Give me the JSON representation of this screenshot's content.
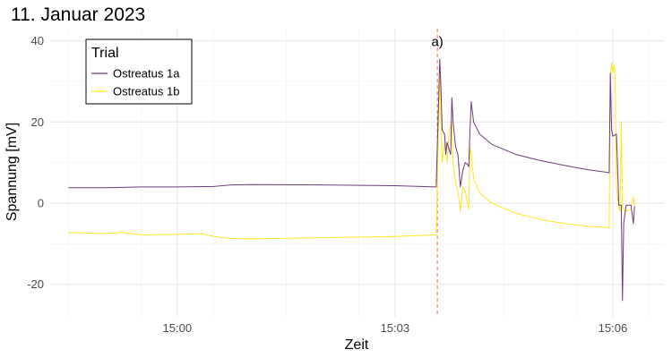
{
  "chart_data": {
    "type": "line",
    "title": "11. Januar 2023",
    "xlabel": "Zeit",
    "ylabel": "Spannung [mV]",
    "x_unit": "time (hh:mm:ss)",
    "xlim": [
      "14:58:15",
      "15:06:43"
    ],
    "ylim": [
      -28,
      43
    ],
    "x_ticks": [
      {
        "label": "15:00",
        "value": "15:00:00"
      },
      {
        "label": "15:03",
        "value": "15:03:00"
      },
      {
        "label": "15:06",
        "value": "15:06:00"
      }
    ],
    "y_ticks": [
      -20,
      0,
      20,
      40
    ],
    "minor_x_ticks": [
      "14:58:30",
      "14:59:30",
      "15:00:30",
      "15:01:30",
      "15:02:30",
      "15:03:30",
      "15:04:30",
      "15:05:30",
      "15:06:30"
    ],
    "minor_y_ticks": [
      -10,
      10,
      30
    ],
    "grid": true,
    "legend": {
      "title": "Trial",
      "position": "top-left"
    },
    "series": [
      {
        "name": "Ostreatus 1a",
        "color": "#6b3d7a",
        "points": [
          [
            "14:58:30",
            3.8
          ],
          [
            "14:59:00",
            3.8
          ],
          [
            "14:59:30",
            4.0
          ],
          [
            "15:00:00",
            4.0
          ],
          [
            "15:00:30",
            4.1
          ],
          [
            "15:00:45",
            4.5
          ],
          [
            "15:01:00",
            4.6
          ],
          [
            "15:02:00",
            4.5
          ],
          [
            "15:03:00",
            4.3
          ],
          [
            "15:03:34",
            4.0
          ],
          [
            "15:03:37",
            35.5
          ],
          [
            "15:03:38",
            28
          ],
          [
            "15:03:39",
            18
          ],
          [
            "15:03:41",
            17
          ],
          [
            "15:03:42",
            12
          ],
          [
            "15:03:43",
            15
          ],
          [
            "15:03:45",
            13
          ],
          [
            "15:03:46",
            12
          ],
          [
            "15:03:47",
            26
          ],
          [
            "15:03:48",
            20
          ],
          [
            "15:03:50",
            14
          ],
          [
            "15:03:52",
            12
          ],
          [
            "15:03:54",
            4
          ],
          [
            "15:03:56",
            8
          ],
          [
            "15:03:58",
            10
          ],
          [
            "15:04:00",
            9.5
          ],
          [
            "15:04:01",
            9
          ],
          [
            "15:04:02",
            18.5
          ],
          [
            "15:04:03",
            25
          ],
          [
            "15:04:05",
            20
          ],
          [
            "15:04:10",
            17
          ],
          [
            "15:04:20",
            14.5
          ],
          [
            "15:04:40",
            12
          ],
          [
            "15:05:00",
            10.5
          ],
          [
            "15:05:20",
            9.3
          ],
          [
            "15:05:40",
            8.2
          ],
          [
            "15:05:55",
            7.6
          ],
          [
            "15:05:57",
            7.5
          ],
          [
            "15:05:58",
            32
          ],
          [
            "15:05:59",
            18
          ],
          [
            "15:06:00",
            16.5
          ],
          [
            "15:06:03",
            17
          ],
          [
            "15:06:05",
            -0.5
          ],
          [
            "15:06:07",
            -0.5
          ],
          [
            "15:06:08",
            -24
          ],
          [
            "15:06:09",
            -5
          ],
          [
            "15:06:11",
            -0.5
          ],
          [
            "15:06:15",
            -0.5
          ],
          [
            "15:06:17",
            -5
          ],
          [
            "15:06:18",
            -0.8
          ]
        ]
      },
      {
        "name": "Ostreatus 1b",
        "color": "#fde725",
        "points": [
          [
            "14:58:30",
            -7.2
          ],
          [
            "14:59:00",
            -7.5
          ],
          [
            "14:59:15",
            -7.2
          ],
          [
            "14:59:30",
            -7.8
          ],
          [
            "15:00:00",
            -7.7
          ],
          [
            "15:00:20",
            -7.5
          ],
          [
            "15:00:30",
            -8.2
          ],
          [
            "15:00:45",
            -8.7
          ],
          [
            "15:01:00",
            -8.8
          ],
          [
            "15:02:00",
            -8.5
          ],
          [
            "15:03:00",
            -8.2
          ],
          [
            "15:03:34",
            -7.8
          ],
          [
            "15:03:37",
            32
          ],
          [
            "15:03:38",
            20
          ],
          [
            "15:03:39",
            10
          ],
          [
            "15:03:41",
            15
          ],
          [
            "15:03:43",
            10
          ],
          [
            "15:03:45",
            18
          ],
          [
            "15:03:47",
            20
          ],
          [
            "15:03:48",
            10
          ],
          [
            "15:03:50",
            5
          ],
          [
            "15:03:52",
            3
          ],
          [
            "15:03:54",
            -2
          ],
          [
            "15:03:56",
            4
          ],
          [
            "15:03:58",
            3
          ],
          [
            "15:04:00",
            0
          ],
          [
            "15:04:01",
            -1.5
          ],
          [
            "15:04:02",
            14
          ],
          [
            "15:04:03",
            12
          ],
          [
            "15:04:05",
            6
          ],
          [
            "15:04:10",
            2.5
          ],
          [
            "15:04:20",
            0
          ],
          [
            "15:04:40",
            -2.5
          ],
          [
            "15:05:00",
            -4
          ],
          [
            "15:05:20",
            -5
          ],
          [
            "15:05:40",
            -5.7
          ],
          [
            "15:05:56",
            -6
          ],
          [
            "15:05:57",
            -6.2
          ],
          [
            "15:05:58",
            31
          ],
          [
            "15:05:59",
            34.5
          ],
          [
            "15:06:00",
            32
          ],
          [
            "15:06:01",
            34
          ],
          [
            "15:06:02",
            31
          ],
          [
            "15:06:03",
            4
          ],
          [
            "15:06:05",
            -1.5
          ],
          [
            "15:06:06",
            -2
          ],
          [
            "15:06:07",
            20
          ],
          [
            "15:06:08",
            -1
          ],
          [
            "15:06:10",
            -2
          ],
          [
            "15:06:15",
            -1.5
          ],
          [
            "15:06:17",
            1.5
          ],
          [
            "15:06:18",
            -1
          ]
        ]
      }
    ],
    "annotations": [
      {
        "type": "vline",
        "x": "15:03:35",
        "color": "#e8735a",
        "style": "dashed"
      },
      {
        "type": "text",
        "text": "a)",
        "x": "15:03:35",
        "y": 40
      }
    ]
  }
}
